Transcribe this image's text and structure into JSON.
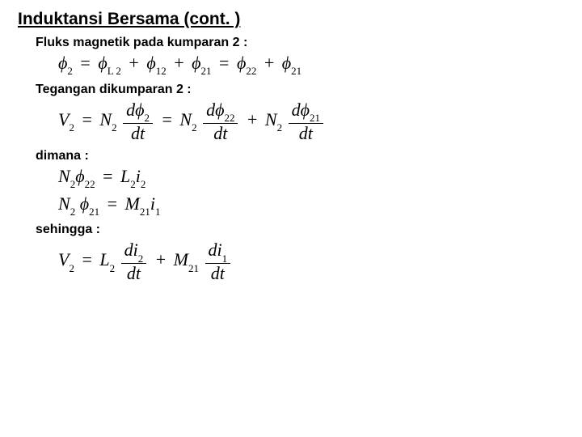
{
  "title": "Induktansi Bersama (cont. )",
  "labels": {
    "flux": "Fluks magnetik pada kumparan 2 :",
    "voltage": "Tegangan dikumparan 2 :",
    "where": "dimana :",
    "so": "sehingga :"
  },
  "sym": {
    "phi": "ϕ",
    "eq": "=",
    "plus": "+",
    "V": "V",
    "N": "N",
    "L": "L",
    "M": "M",
    "i": "i",
    "d": "d",
    "t": "t"
  },
  "sub": {
    "2": "2",
    "L2": "L 2",
    "12": "12",
    "21": "21",
    "22": "22",
    "1": "1"
  },
  "style": {
    "background": "#ffffff",
    "text_color": "#000000",
    "title_fontsize": 21,
    "label_fontsize": 16,
    "eq_fontsize": 22,
    "sub_fontsize": 13,
    "eq_font": "Times New Roman",
    "body_font": "Arial"
  }
}
